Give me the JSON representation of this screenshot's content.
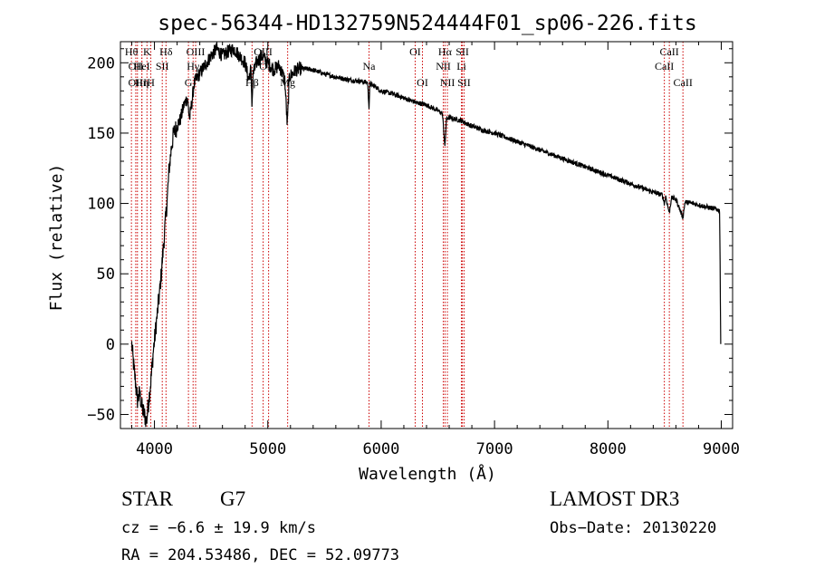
{
  "chart_data": {
    "type": "line",
    "title": "spec-56344-HD132759N524444F01_sp06-226.fits",
    "xlabel": "Wavelength (Å)",
    "ylabel": "Flux (relative)",
    "xlim": [
      3700,
      9100
    ],
    "ylim": [
      -60,
      215
    ],
    "xticks": [
      4000,
      5000,
      6000,
      7000,
      8000,
      9000
    ],
    "yticks": [
      -50,
      0,
      50,
      100,
      150,
      200
    ],
    "series": [
      {
        "name": "flux",
        "x": [
          3800,
          3810,
          3830,
          3850,
          3870,
          3890,
          3910,
          3930,
          3950,
          3970,
          3990,
          4010,
          4030,
          4050,
          4070,
          4090,
          4110,
          4130,
          4150,
          4170,
          4200,
          4230,
          4260,
          4290,
          4310,
          4330,
          4350,
          4380,
          4420,
          4460,
          4500,
          4550,
          4600,
          4650,
          4700,
          4750,
          4800,
          4830,
          4850,
          4861,
          4870,
          4900,
          4950,
          5000,
          5050,
          5100,
          5150,
          5172,
          5190,
          5250,
          5300,
          5400,
          5500,
          5600,
          5700,
          5800,
          5880,
          5893,
          5900,
          5950,
          6000,
          6100,
          6200,
          6300,
          6400,
          6450,
          6500,
          6540,
          6563,
          6575,
          6600,
          6650,
          6700,
          6800,
          6900,
          7000,
          7100,
          7200,
          7300,
          7400,
          7500,
          7600,
          7700,
          7800,
          7900,
          8000,
          8100,
          8200,
          8300,
          8400,
          8480,
          8498,
          8510,
          8542,
          8560,
          8600,
          8662,
          8680,
          8750,
          8800,
          8850,
          8900,
          8950,
          8985,
          8990,
          8995
        ],
        "y": [
          0,
          -10,
          -25,
          -40,
          -35,
          -45,
          -50,
          -55,
          -40,
          -25,
          -5,
          10,
          25,
          40,
          60,
          80,
          100,
          125,
          140,
          150,
          155,
          160,
          170,
          175,
          160,
          172,
          185,
          190,
          195,
          200,
          205,
          210,
          205,
          208,
          210,
          205,
          200,
          188,
          195,
          170,
          192,
          200,
          205,
          200,
          195,
          198,
          188,
          155,
          190,
          195,
          196,
          195,
          192,
          190,
          188,
          187,
          186,
          168,
          185,
          183,
          180,
          178,
          175,
          172,
          170,
          168,
          166,
          164,
          140,
          160,
          161,
          160,
          159,
          155,
          152,
          150,
          147,
          144,
          141,
          138,
          135,
          132,
          129,
          126,
          123,
          120,
          117,
          114,
          111,
          108,
          106,
          100,
          105,
          93,
          104,
          103,
          90,
          101,
          100,
          99,
          98,
          97,
          96,
          95,
          60,
          0
        ]
      }
    ],
    "annotations": [
      {
        "wavelength": 3797,
        "label": "Hθ",
        "row": 0
      },
      {
        "wavelength": 3835,
        "label": "OII",
        "row": 1
      },
      {
        "wavelength": 3850,
        "label": "OIII",
        "row": 2
      },
      {
        "wavelength": 3889,
        "label": "Hη",
        "row": 2
      },
      {
        "wavelength": 3934,
        "label": "K",
        "row": 0
      },
      {
        "wavelength": 3968,
        "label": "H",
        "row": 2
      },
      {
        "wavelength": 3889,
        "label": "HeI",
        "row": 1
      },
      {
        "wavelength": 4069,
        "label": "SII",
        "row": 1
      },
      {
        "wavelength": 4102,
        "label": "Hδ",
        "row": 0
      },
      {
        "wavelength": 4300,
        "label": "G",
        "row": 2
      },
      {
        "wavelength": 4341,
        "label": "Hγ",
        "row": 1
      },
      {
        "wavelength": 4363,
        "label": "OIII",
        "row": 0
      },
      {
        "wavelength": 4861,
        "label": "Hβ",
        "row": 2
      },
      {
        "wavelength": 4959,
        "label": "OIII",
        "row": 0
      },
      {
        "wavelength": 5007,
        "label": "OIII",
        "row": 1
      },
      {
        "wavelength": 5175,
        "label": "Mg",
        "row": 2
      },
      {
        "wavelength": 5893,
        "label": "Na",
        "row": 1
      },
      {
        "wavelength": 6300,
        "label": "OI",
        "row": 0
      },
      {
        "wavelength": 6364,
        "label": "OI",
        "row": 2
      },
      {
        "wavelength": 6548,
        "label": "NII",
        "row": 1
      },
      {
        "wavelength": 6563,
        "label": "Hα",
        "row": 0
      },
      {
        "wavelength": 6584,
        "label": "NII",
        "row": 2
      },
      {
        "wavelength": 6708,
        "label": "Li",
        "row": 1
      },
      {
        "wavelength": 6716,
        "label": "SII",
        "row": 0
      },
      {
        "wavelength": 6731,
        "label": "SII",
        "row": 2
      },
      {
        "wavelength": 8498,
        "label": "CaII",
        "row": 1
      },
      {
        "wavelength": 8542,
        "label": "CaII",
        "row": 0
      },
      {
        "wavelength": 8662,
        "label": "CaII",
        "row": 2
      }
    ]
  },
  "info": {
    "class_type": "STAR",
    "class_sub": "G7",
    "survey": "LAMOST DR3",
    "cz": "cz = −6.6 ± 19.9 km/s",
    "obs_date": "Obs−Date: 20130220",
    "radec": "RA = 204.53486, DEC =  52.09773"
  },
  "colors": {
    "line": "#000000",
    "marker": "#cc0000",
    "background": "#ffffff"
  }
}
